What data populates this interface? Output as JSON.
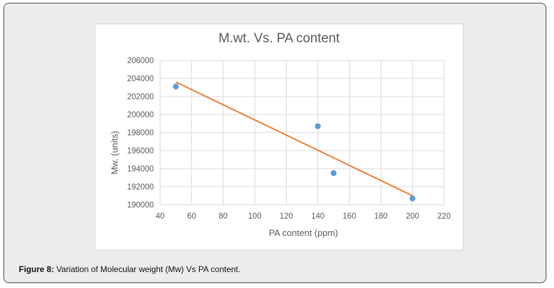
{
  "caption": {
    "label": "Figure 8:",
    "text": " Variation of Molecular weight (Mw) Vs PA content."
  },
  "chart_data": {
    "type": "scatter",
    "title": "M.wt. Vs. PA content",
    "xlabel": "PA content (ppm)",
    "ylabel": "Mw. (units)",
    "xlim": [
      40,
      220
    ],
    "ylim": [
      190000,
      206000
    ],
    "xticks": [
      40,
      60,
      80,
      100,
      120,
      140,
      160,
      180,
      200,
      220
    ],
    "yticks": [
      190000,
      192000,
      194000,
      196000,
      198000,
      200000,
      202000,
      204000,
      206000
    ],
    "grid": true,
    "points": [
      {
        "x": 50,
        "y": 203100
      },
      {
        "x": 140,
        "y": 198700
      },
      {
        "x": 150,
        "y": 193500
      },
      {
        "x": 200,
        "y": 190700
      }
    ],
    "trendline": {
      "x": [
        50,
        200
      ],
      "y": [
        203600,
        191000
      ]
    },
    "colors": {
      "points": "#5b9bd5",
      "trendline": "#ed7d31",
      "grid": "#d9d9d9",
      "text": "#595959"
    }
  }
}
